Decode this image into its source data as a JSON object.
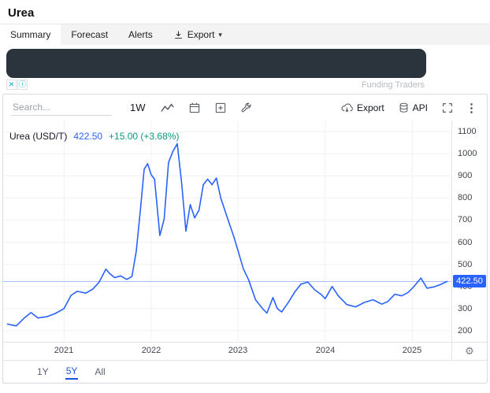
{
  "page": {
    "title": "Urea"
  },
  "tabs": [
    {
      "label": "Summary",
      "active": true
    },
    {
      "label": "Forecast",
      "active": false
    },
    {
      "label": "Alerts",
      "active": false
    },
    {
      "label": "Export",
      "active": false,
      "icon": "download-icon",
      "caret": "▾"
    }
  ],
  "ad": {
    "attribution": "Funding Traders",
    "close_symbol": "✕",
    "info_symbol": "ⓘ"
  },
  "toolbar": {
    "search_placeholder": "Search...",
    "interval_label": "1W",
    "icons": [
      "chart-line-icon",
      "calendar-icon",
      "plus-square-icon",
      "wrench-icon"
    ],
    "export_label": "Export",
    "api_label": "API",
    "more_symbol": "⋮"
  },
  "legend": {
    "symbol": "Urea (USD/T)",
    "price": "422.50",
    "change": "+15.00 (+3.68%)"
  },
  "axis": {
    "price_label": "422.50",
    "gear_symbol": "⚙"
  },
  "range_buttons": [
    {
      "label": "1Y",
      "active": false
    },
    {
      "label": "5Y",
      "active": true
    },
    {
      "label": "All",
      "active": false
    }
  ],
  "colors": {
    "accent_blue": "#2962ff",
    "gain_green": "#089981",
    "banner_dark": "#2b343d",
    "grid": "#eef1f6"
  },
  "chart_data": {
    "type": "line",
    "title": "Urea (USD/T)",
    "ylabel": "USD/T",
    "x_ticks": [
      "2021",
      "2022",
      "2023",
      "2024",
      "2025"
    ],
    "y_ticks": [
      200,
      300,
      400,
      500,
      600,
      700,
      800,
      900,
      1000,
      1100
    ],
    "xlim": [
      2020.3,
      2025.45
    ],
    "ylim": [
      150,
      1150
    ],
    "grid": true,
    "line_color": "#2962ff",
    "current_price": 422.5,
    "x": [
      2020.35,
      2020.45,
      2020.55,
      2020.62,
      2020.7,
      2020.8,
      2020.9,
      2021.0,
      2021.08,
      2021.15,
      2021.25,
      2021.33,
      2021.4,
      2021.48,
      2021.52,
      2021.58,
      2021.65,
      2021.72,
      2021.78,
      2021.83,
      2021.88,
      2021.92,
      2021.96,
      2022.0,
      2022.04,
      2022.1,
      2022.15,
      2022.2,
      2022.25,
      2022.3,
      2022.35,
      2022.4,
      2022.45,
      2022.5,
      2022.55,
      2022.6,
      2022.65,
      2022.7,
      2022.75,
      2022.8,
      2022.88,
      2022.95,
      2023.0,
      2023.06,
      2023.12,
      2023.2,
      2023.28,
      2023.33,
      2023.4,
      2023.45,
      2023.5,
      2023.58,
      2023.65,
      2023.72,
      2023.8,
      2023.88,
      2023.95,
      2024.0,
      2024.08,
      2024.15,
      2024.25,
      2024.35,
      2024.45,
      2024.55,
      2024.65,
      2024.72,
      2024.8,
      2024.88,
      2024.95,
      2025.02,
      2025.1,
      2025.17,
      2025.25,
      2025.32,
      2025.4
    ],
    "values": [
      230,
      222,
      260,
      282,
      258,
      263,
      278,
      300,
      360,
      378,
      370,
      388,
      418,
      478,
      460,
      440,
      448,
      432,
      445,
      560,
      760,
      930,
      955,
      905,
      885,
      630,
      705,
      960,
      1010,
      1045,
      870,
      650,
      770,
      710,
      745,
      860,
      885,
      860,
      890,
      800,
      705,
      625,
      560,
      480,
      430,
      340,
      300,
      280,
      350,
      300,
      285,
      330,
      375,
      410,
      420,
      385,
      365,
      345,
      400,
      358,
      318,
      308,
      328,
      340,
      320,
      332,
      365,
      358,
      372,
      400,
      438,
      392,
      398,
      408,
      422.5
    ]
  }
}
